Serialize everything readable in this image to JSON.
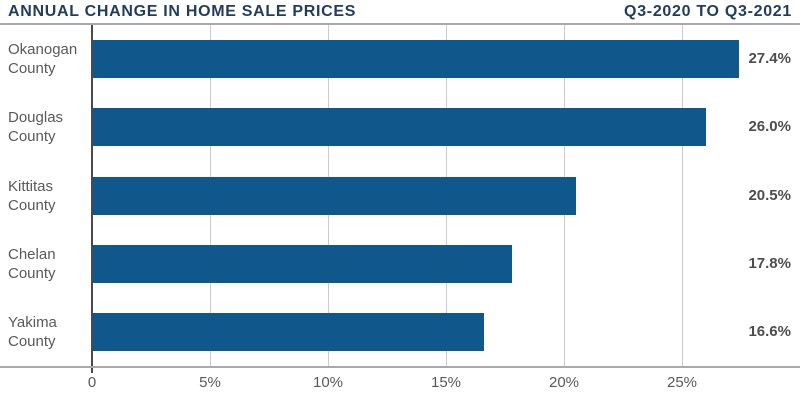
{
  "header": {
    "title": "ANNUAL CHANGE IN HOME SALE PRICES",
    "period": "Q3-2020 TO Q3-2021"
  },
  "chart_data": {
    "type": "bar",
    "orientation": "horizontal",
    "title": "ANNUAL CHANGE IN HOME SALE PRICES",
    "subtitle": "Q3-2020 TO Q3-2021",
    "categories": [
      "Okanogan County",
      "Douglas County",
      "Kittitas County",
      "Chelan County",
      "Yakima County"
    ],
    "values": [
      27.4,
      26.0,
      20.5,
      17.8,
      16.6
    ],
    "value_labels": [
      "27.4%",
      "26.0%",
      "20.5%",
      "17.8%",
      "16.6%"
    ],
    "xlabel": "",
    "ylabel": "",
    "xlim": [
      0,
      30
    ],
    "ticks": [
      {
        "value": 0,
        "label": "0"
      },
      {
        "value": 5,
        "label": "5%"
      },
      {
        "value": 10,
        "label": "10%"
      },
      {
        "value": 15,
        "label": "15%"
      },
      {
        "value": 20,
        "label": "20%"
      },
      {
        "value": 25,
        "label": "25%"
      }
    ],
    "grid": true,
    "legend": "none",
    "colors": {
      "bar": "#10578C",
      "title": "#1F3D5C",
      "category_text": "#58595B",
      "value_text": "#4D4D4F",
      "gridline": "#C9CDD2",
      "zero_axis": "#4A4A4C",
      "bottom_axis": "#A7A9AC"
    }
  }
}
